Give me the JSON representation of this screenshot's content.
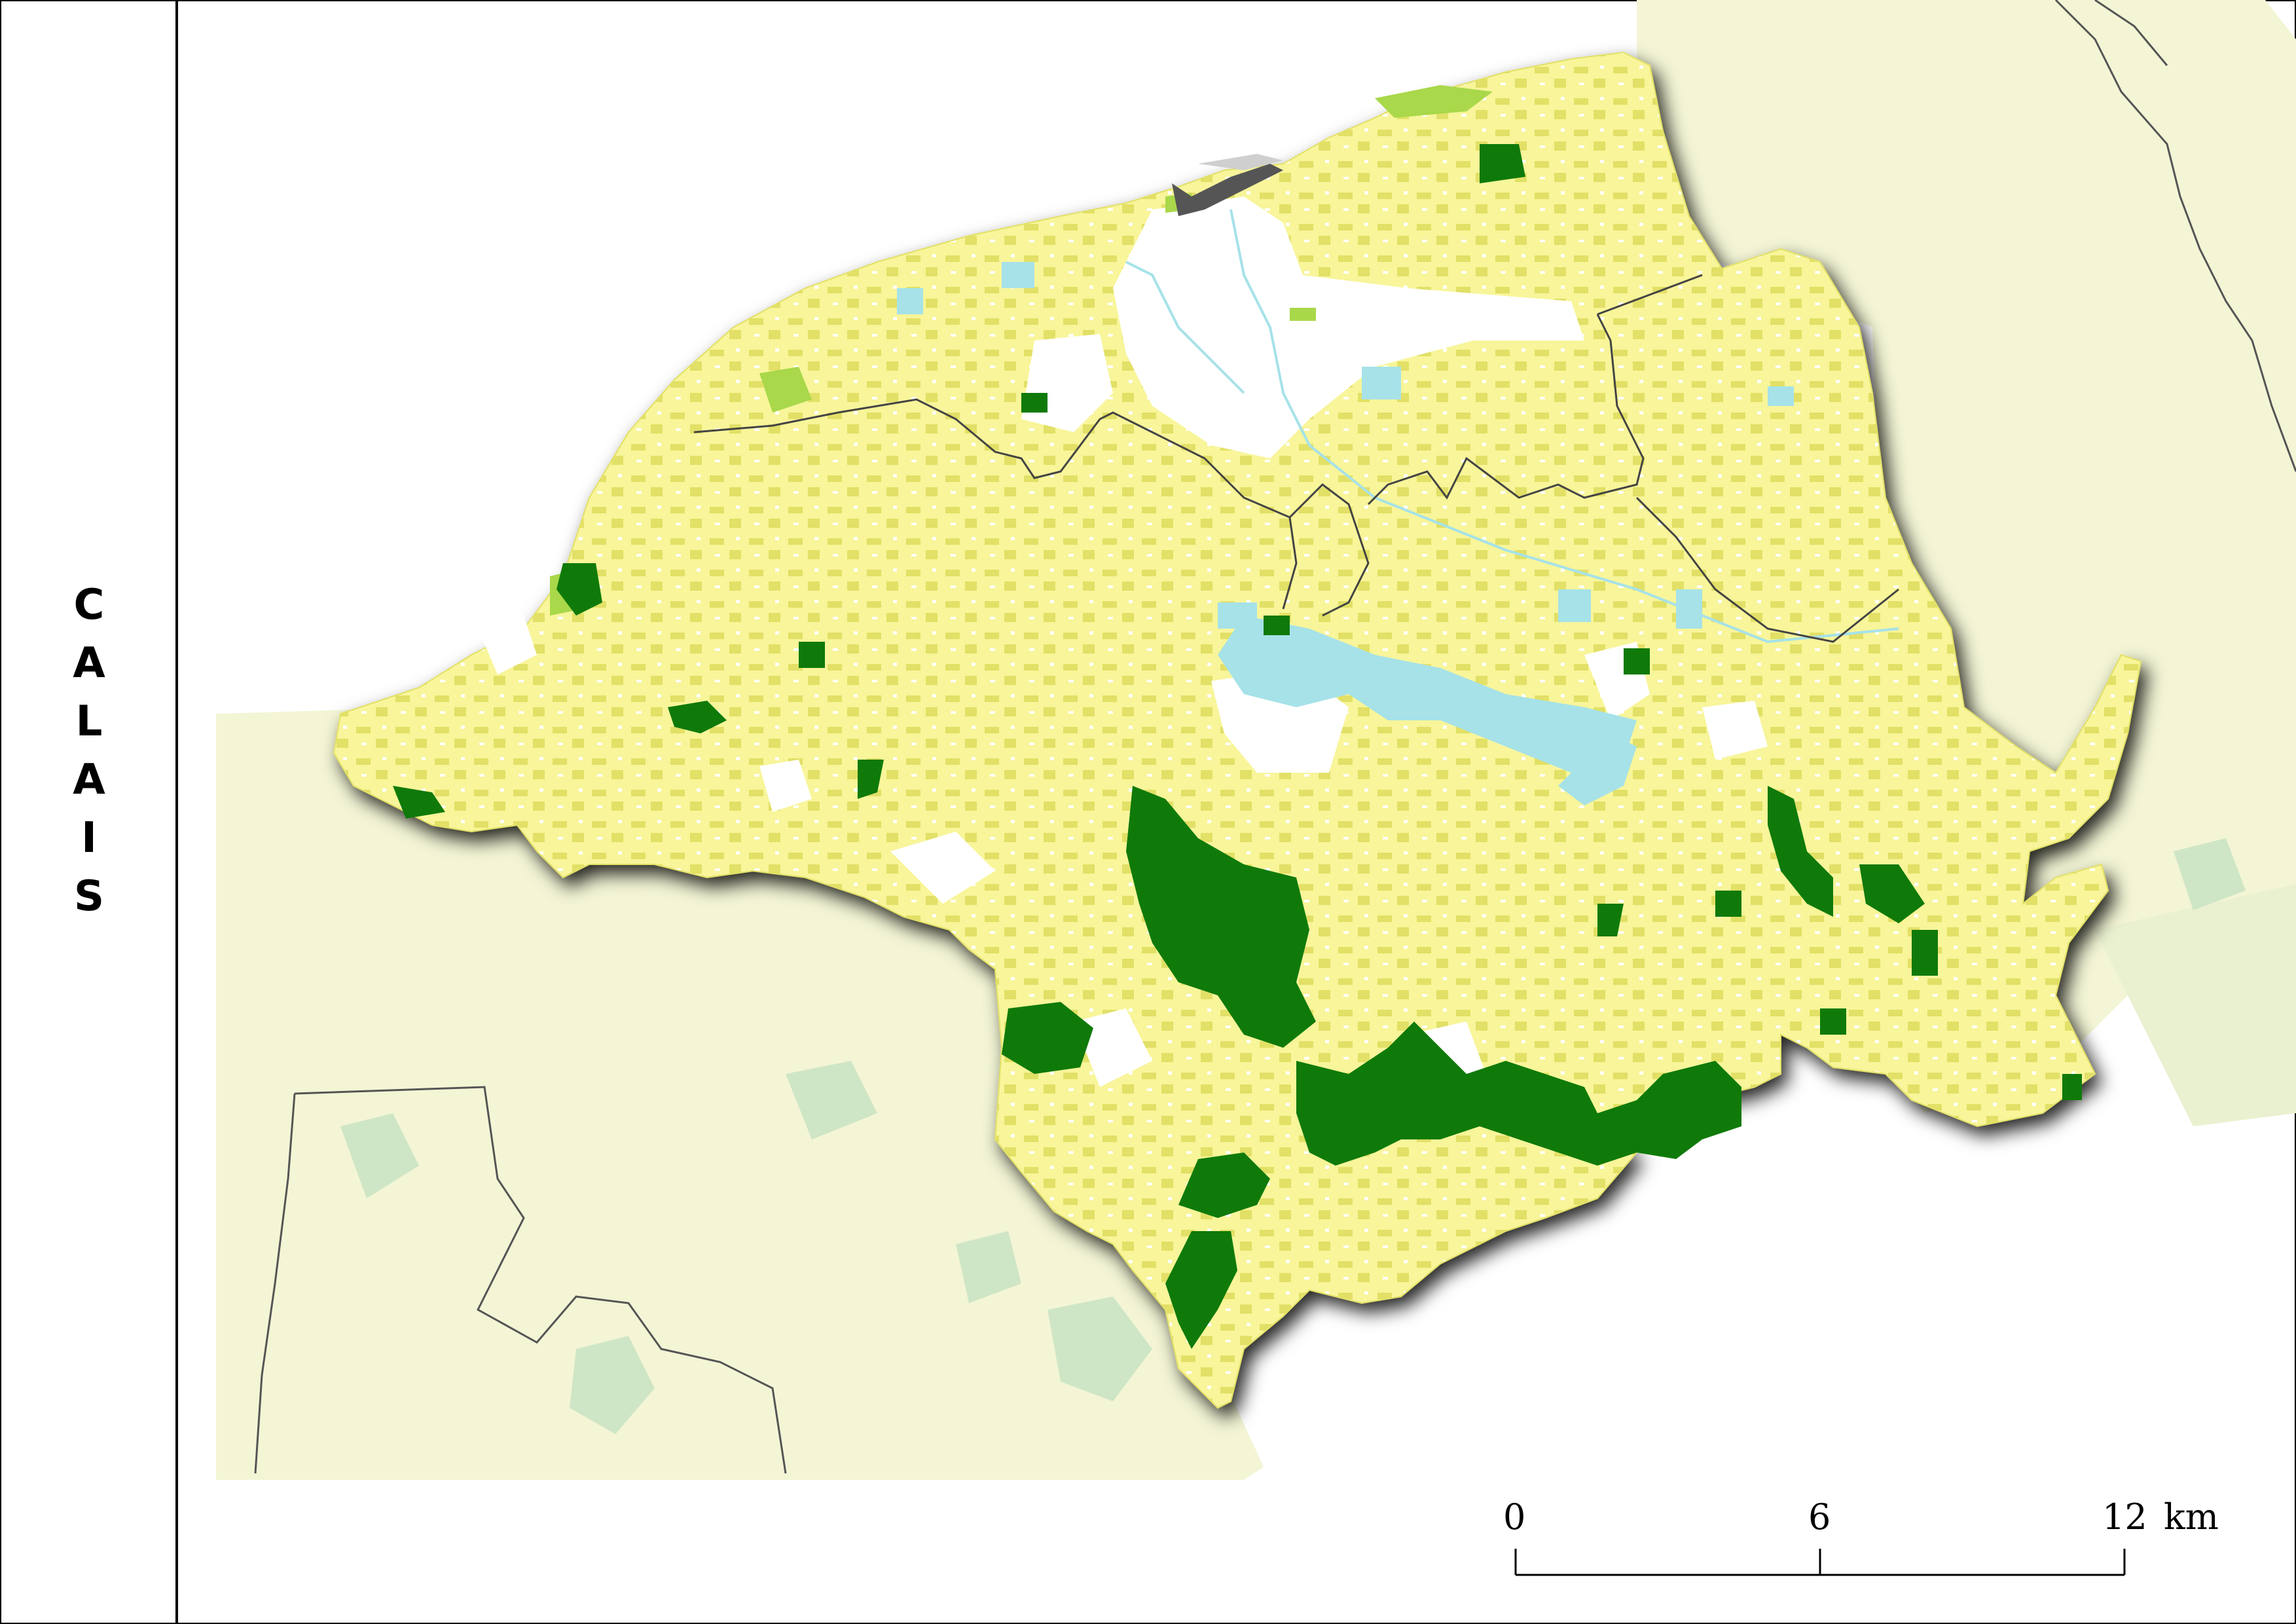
{
  "map": {
    "place_name": "CALAIS",
    "colors": {
      "background": "#ffffff",
      "context_land": "#f3f5d5",
      "context_forest": "#cfe6c6",
      "territory_crop": "#f8f59a",
      "territory_grass": "#e2e066",
      "deciduous_forest": "#0f7a0a",
      "wet_meadow": "#a9d84a",
      "water": "#a6e2e8",
      "urban": "#ffffff",
      "boundary": "#333333"
    }
  },
  "scale_bar": {
    "ticks": [
      "0",
      "6",
      "12"
    ],
    "unit": "km"
  }
}
